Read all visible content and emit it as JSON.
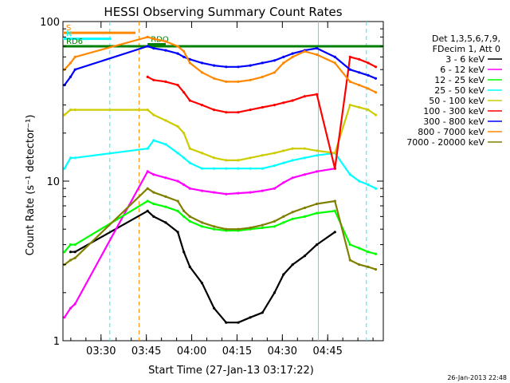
{
  "chart_data": {
    "type": "line",
    "title": "HESSI Observing Summary Count Rates",
    "xlabel": "Start Time (27-Jan-13 03:17:22)",
    "ylabel": "Count Rate (s⁻¹ detector⁻¹)",
    "ylog": true,
    "ylim": [
      1,
      100
    ],
    "xlim_minutes_after_start": [
      0,
      106
    ],
    "x_ticks": [
      "03:30",
      "03:45",
      "04:00",
      "04:15",
      "04:30",
      "04:45"
    ],
    "x_tick_minutes_after_start": [
      12.6,
      27.6,
      42.6,
      57.6,
      72.6,
      87.6
    ],
    "y_ticks": [
      "1",
      "10",
      "100"
    ],
    "legend_placement": "right",
    "legend_header": [
      "Det 1,3,5,6,7,9,",
      "FDecim 1, Att 0"
    ],
    "x": [
      0.5,
      2.5,
      4.0,
      28.0,
      30.0,
      34.0,
      38.0,
      40.0,
      42.0,
      46.0,
      50.0,
      54.0,
      58.0,
      62.0,
      66.0,
      70.0,
      73.0,
      76.0,
      80.0,
      84.0,
      90.0,
      95.0,
      98.0,
      101.0,
      103.5
    ],
    "series": [
      {
        "name": "3 - 6 keV",
        "color": "#000000",
        "values": [
          null,
          3.6,
          3.6,
          6.5,
          6.0,
          5.5,
          4.8,
          3.6,
          2.9,
          2.3,
          1.6,
          1.3,
          1.3,
          1.4,
          1.5,
          2.0,
          2.6,
          3.0,
          3.4,
          4.0,
          4.8,
          null,
          null,
          null,
          null
        ]
      },
      {
        "name": "6 - 12 keV",
        "color": "#ff00ff",
        "values": [
          1.4,
          1.6,
          1.7,
          11.5,
          11.0,
          10.5,
          10.0,
          9.5,
          9.0,
          8.7,
          8.5,
          8.3,
          8.4,
          8.5,
          8.7,
          9.0,
          9.8,
          10.5,
          11.0,
          11.5,
          12.0,
          null,
          null,
          null,
          null
        ]
      },
      {
        "name": "12 - 25 keV",
        "color": "#00ff00",
        "values": [
          3.6,
          4.0,
          4.0,
          7.5,
          7.2,
          6.9,
          6.5,
          6.0,
          5.6,
          5.2,
          5.0,
          4.9,
          4.9,
          5.0,
          5.1,
          5.2,
          5.5,
          5.8,
          6.0,
          6.3,
          6.5,
          4.0,
          3.8,
          3.6,
          3.5
        ]
      },
      {
        "name": "25 - 50 keV",
        "color": "#00ffff",
        "values": [
          12,
          14,
          14,
          16,
          18,
          17,
          15,
          14,
          13,
          12,
          12,
          12,
          12,
          12,
          12,
          12.5,
          13,
          13.5,
          14,
          14.5,
          15,
          11,
          10,
          9.5,
          9
        ]
      },
      {
        "name": "50 - 100 keV",
        "color": "#cccc00",
        "values": [
          26,
          28,
          28,
          28,
          26,
          24,
          22,
          20,
          16,
          15,
          14,
          13.5,
          13.5,
          14,
          14.5,
          15,
          15.5,
          16,
          16,
          15.5,
          15,
          30,
          29,
          28,
          26
        ]
      },
      {
        "name": "100 - 300 keV",
        "color": "#ff0000",
        "values": [
          null,
          null,
          null,
          45,
          43,
          42,
          40,
          36,
          32,
          30,
          28,
          27,
          27,
          28,
          29,
          30,
          31,
          32,
          34,
          35,
          12,
          60,
          58,
          55,
          52
        ]
      },
      {
        "name": "300 - 800 keV",
        "color": "#0000ff",
        "values": [
          40,
          45,
          50,
          70,
          68,
          66,
          63,
          60,
          58,
          55,
          53,
          52,
          52,
          53,
          55,
          57,
          60,
          63,
          66,
          68,
          60,
          50,
          48,
          46,
          44
        ]
      },
      {
        "name": "800 - 7000 keV",
        "color": "#ff8800",
        "values": [
          50,
          55,
          60,
          80,
          78,
          75,
          70,
          65,
          55,
          48,
          44,
          42,
          42,
          43,
          45,
          48,
          55,
          60,
          65,
          62,
          55,
          42,
          40,
          38,
          36
        ]
      },
      {
        "name": "7000 - 20000 keV",
        "color": "#808000",
        "values": [
          3.0,
          3.2,
          3.3,
          9.0,
          8.5,
          8.0,
          7.5,
          6.5,
          6.0,
          5.5,
          5.2,
          5.0,
          5.0,
          5.1,
          5.3,
          5.6,
          6.0,
          6.4,
          6.8,
          7.2,
          7.5,
          3.2,
          3.0,
          2.9,
          2.8
        ]
      }
    ],
    "flag_lines": [
      {
        "label": "S",
        "color": "#ff8800",
        "segments": [
          [
            0,
            85
          ]
        ],
        "x_range_minutes": [
          0,
          24
        ]
      },
      {
        "label": "N",
        "color": "#00ffff",
        "segments": [
          [
            0,
            78
          ]
        ],
        "x_range_minutes": [
          0,
          16
        ]
      },
      {
        "label": "RD6",
        "color": "#008000",
        "segments": [
          [
            0,
            70
          ]
        ],
        "x_range_minutes": [
          0,
          106
        ]
      },
      {
        "label": "RDO",
        "color": "#008000",
        "segments": [
          [
            0,
            72
          ]
        ],
        "x_range_minutes": [
          28,
          34
        ]
      }
    ],
    "vertical_markers": [
      {
        "color": "#00ffff",
        "style": "dashed",
        "minute": 15.5
      },
      {
        "color": "#ff8800",
        "style": "dashed",
        "minute": 25.2
      },
      {
        "color": "#00ffff",
        "style": "solid",
        "minute": 84.5
      },
      {
        "color": "#00ffff",
        "style": "dashed",
        "minute": 100.4
      }
    ],
    "footer_timestamp": "26-Jan-2013 22:48"
  }
}
